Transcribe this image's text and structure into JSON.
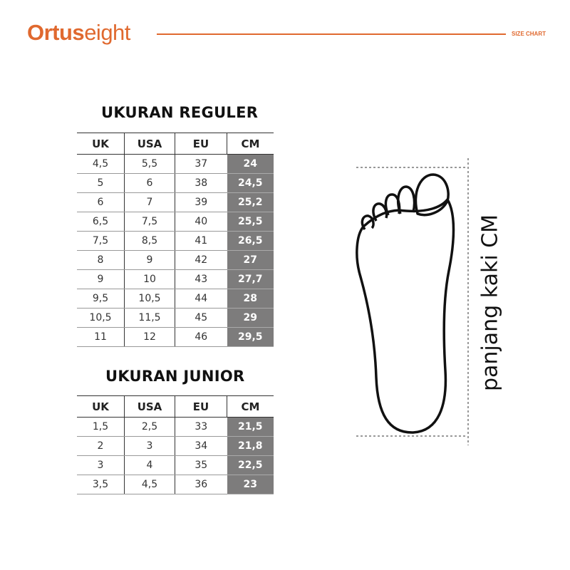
{
  "header": {
    "brand_bold": "Ortus",
    "brand_light": "eight",
    "section_label": "SIZE CHART",
    "accent_color": "#e0692f"
  },
  "regular": {
    "title": "UKURAN REGULER",
    "columns": [
      "UK",
      "USA",
      "EU",
      "CM"
    ],
    "rows": [
      [
        "4,5",
        "5,5",
        "37",
        "24"
      ],
      [
        "5",
        "6",
        "38",
        "24,5"
      ],
      [
        "6",
        "7",
        "39",
        "25,2"
      ],
      [
        "6,5",
        "7,5",
        "40",
        "25,5"
      ],
      [
        "7,5",
        "8,5",
        "41",
        "26,5"
      ],
      [
        "8",
        "9",
        "42",
        "27"
      ],
      [
        "9",
        "10",
        "43",
        "27,7"
      ],
      [
        "9,5",
        "10,5",
        "44",
        "28"
      ],
      [
        "10,5",
        "11,5",
        "45",
        "29"
      ],
      [
        "11",
        "12",
        "46",
        "29,5"
      ]
    ]
  },
  "junior": {
    "title": "UKURAN JUNIOR",
    "columns": [
      "UK",
      "USA",
      "EU",
      "CM"
    ],
    "rows": [
      [
        "1,5",
        "2,5",
        "33",
        "21,5"
      ],
      [
        "2",
        "3",
        "34",
        "21,8"
      ],
      [
        "3",
        "4",
        "35",
        "22,5"
      ],
      [
        "3,5",
        "4,5",
        "36",
        "23"
      ]
    ]
  },
  "diagram": {
    "label": "panjang kaki CM",
    "icon": "foot-outline-icon"
  }
}
